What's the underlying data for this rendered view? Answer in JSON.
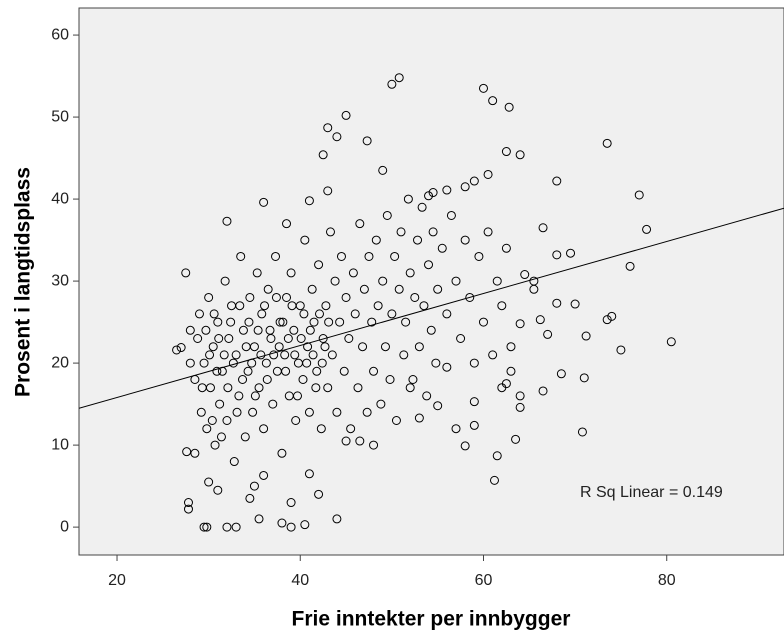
{
  "chart_data": {
    "type": "scatter",
    "xlabel": "Frie inntekter per innbygger",
    "ylabel": "Prosent i langtidsplass",
    "annotation": "R Sq Linear = 0.149",
    "xlim": [
      15.85,
      92.8
    ],
    "ylim": [
      -3.4,
      63.3
    ],
    "xticks": [
      20,
      40,
      60,
      80
    ],
    "yticks": [
      0,
      10,
      20,
      30,
      40,
      50,
      60
    ],
    "fit_line": {
      "intercept": 9.47,
      "slope": 0.317
    },
    "color": "#000000",
    "background": "#f0f0f0",
    "x": [
      27.5,
      27.8,
      27.8,
      29.5,
      29.8,
      32,
      33,
      35.5,
      38,
      39,
      40.5,
      44,
      50,
      50.8,
      60,
      61,
      62.8,
      62.5,
      64,
      73.5,
      77,
      77.8,
      76,
      80.5,
      75,
      73.5,
      74,
      70.8,
      71,
      68.5,
      70,
      69.5,
      68,
      68,
      66.5,
      66.2,
      68,
      67,
      71.2,
      66.5,
      64,
      64,
      63.5,
      61.5,
      61.2,
      62,
      62.5,
      63,
      64,
      65.5,
      65.5,
      64.5,
      60.5,
      59,
      58,
      56,
      54.5,
      54,
      45,
      43,
      44,
      47.3,
      42.5,
      49,
      43,
      41,
      36,
      38.5,
      32,
      58,
      59,
      59,
      57,
      56,
      55,
      53,
      52,
      48,
      45,
      46.5,
      42,
      41,
      39,
      35,
      34.5,
      36,
      31,
      30,
      28.5,
      27.6,
      26.5,
      27,
      28,
      28.5,
      29,
      29.2,
      29.5,
      29.8,
      30,
      30.2,
      30.5,
      30.7,
      31,
      31.2,
      31.5,
      31.8,
      32,
      32.2,
      32.5,
      32.8,
      33,
      33.3,
      33.5,
      33.8,
      34,
      34.3,
      34.5,
      34.8,
      35,
      35.3,
      35.5,
      35.8,
      36,
      36.3,
      36.5,
      36.8,
      37,
      37.3,
      37.5,
      37.8,
      38,
      38.3,
      38.5,
      38.8,
      39,
      39.3,
      39.5,
      39.8,
      40,
      40.3,
      40.5,
      40.8,
      41,
      41.3,
      41.5,
      41.8,
      42,
      42.3,
      42.5,
      42.8,
      43,
      43.3,
      43.5,
      43.8,
      44,
      44.3,
      44.5,
      44.8,
      45,
      45.3,
      45.5,
      45.8,
      46,
      46.3,
      46.5,
      46.8,
      47,
      47.3,
      47.5,
      47.8,
      48,
      48.3,
      48.5,
      48.8,
      49,
      49.3,
      49.5,
      49.8,
      50,
      50.3,
      50.5,
      50.8,
      51,
      51.3,
      51.5,
      51.8,
      52,
      52.3,
      52.5,
      52.8,
      53,
      53.3,
      53.5,
      53.8,
      54,
      54.3,
      54.5,
      54.8,
      55,
      55.5,
      56,
      56.5,
      57,
      57.5,
      58,
      58.5,
      59,
      59.5,
      60,
      60.5,
      61,
      61.5,
      62,
      62.5,
      63,
      28,
      28.8,
      29.3,
      29.7,
      30.1,
      30.4,
      30.6,
      30.9,
      31.1,
      31.4,
      31.7,
      32.1,
      32.4,
      32.7,
      33.1,
      33.4,
      33.7,
      34.1,
      34.4,
      34.7,
      35.1,
      35.4,
      35.7,
      36.1,
      36.4,
      36.7,
      37.1,
      37.4,
      37.7,
      38.1,
      38.4,
      38.7,
      39.1,
      39.4,
      39.7,
      40.1,
      40.4,
      40.7,
      41.1,
      41.4,
      41.7,
      42.1,
      42.4,
      42.7,
      43.1
    ],
    "y": [
      31,
      3,
      2.2,
      0,
      0,
      0,
      0,
      1,
      0.5,
      0,
      0.3,
      1,
      54,
      54.8,
      53.5,
      52,
      51.2,
      45.8,
      45.4,
      46.8,
      40.5,
      36.3,
      31.8,
      22.6,
      21.6,
      25.3,
      25.7,
      11.6,
      18.2,
      18.7,
      27.2,
      33.4,
      33.2,
      42.2,
      36.5,
      25.3,
      27.3,
      23.5,
      23.3,
      16.6,
      16,
      14.6,
      10.7,
      8.7,
      5.7,
      17,
      17.5,
      22,
      24.8,
      29,
      30,
      30.8,
      43,
      42.2,
      41.5,
      41.1,
      40.8,
      40.4,
      50.2,
      48.7,
      47.6,
      47.1,
      45.4,
      43.5,
      41,
      39.8,
      39.6,
      37,
      37.3,
      9.9,
      12.4,
      15.3,
      12,
      19.5,
      14.8,
      13.3,
      17,
      10,
      10.5,
      10.5,
      4,
      6.5,
      3,
      5,
      3.5,
      6.3,
      4.5,
      5.5,
      9,
      9.2,
      21.6,
      21.9,
      24,
      18,
      26,
      14,
      20,
      12,
      28,
      17,
      22,
      10,
      25,
      15,
      19,
      30,
      13,
      23,
      27,
      8,
      21,
      16,
      33,
      24,
      11,
      19,
      28,
      14,
      22,
      31,
      17,
      26,
      12,
      20,
      29,
      23,
      15,
      33,
      19,
      25,
      9,
      21,
      28,
      16,
      31,
      24,
      13,
      20,
      27,
      18,
      35,
      22,
      14,
      29,
      25,
      19,
      32,
      12,
      23,
      27,
      17,
      36,
      21,
      30,
      14,
      25,
      33,
      19,
      28,
      23,
      12,
      31,
      26,
      17,
      37,
      22,
      29,
      14,
      33,
      25,
      19,
      35,
      27,
      15,
      30,
      22,
      38,
      18,
      26,
      33,
      13,
      29,
      36,
      21,
      25,
      40,
      31,
      18,
      28,
      35,
      22,
      39,
      27,
      16,
      32,
      24,
      36,
      20,
      29,
      34,
      26,
      38,
      30,
      23,
      35,
      28,
      20,
      33,
      25,
      36,
      21,
      30,
      27,
      34,
      19,
      20,
      23,
      17,
      24,
      21,
      13,
      26,
      19,
      23,
      11,
      21,
      17,
      25,
      20,
      14,
      27,
      18,
      22,
      25,
      20,
      16,
      24,
      21,
      27,
      18,
      24,
      21,
      28,
      22,
      25,
      19,
      23,
      27,
      21,
      16,
      23,
      26,
      20,
      24,
      21,
      17,
      26,
      20,
      22,
      25
    ]
  }
}
